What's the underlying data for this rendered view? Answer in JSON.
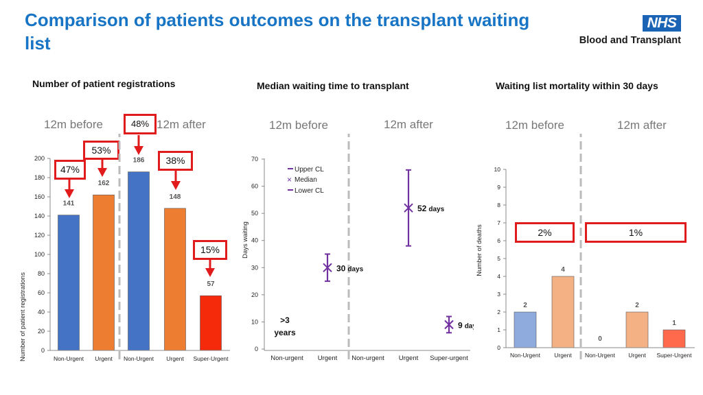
{
  "title": "Comparison of patients outcomes on the transplant waiting list",
  "logo": {
    "badge": "NHS",
    "organisation": "Blood and Transplant"
  },
  "sections": {
    "registrations": "Number of patient registrations",
    "waiting_time": "Median waiting time to transplant",
    "mortality": "Waiting list mortality within 30 days"
  },
  "period_labels": {
    "before": "12m before",
    "after": "12m after"
  },
  "change_labels": {
    "reg_nonurgent": "47%",
    "reg_urgent": "53%",
    "reg_nonurgent_after": "48%",
    "reg_urgent_after": "38%",
    "reg_superurgent": "15%",
    "mort_before": "2%",
    "mort_after": "1%"
  },
  "colors": {
    "title": "#1874c4",
    "blue_bar": "#4472c4",
    "orange_bar": "#ed7d31",
    "red_bar": "#f42a0a",
    "purple": "#7030a0",
    "light_blue_bar": "#8faadc",
    "light_orange_bar": "#f4b183",
    "light_red_bar": "#ff6a4d",
    "highlight": "#e11b1b"
  },
  "chart_data": [
    {
      "type": "bar",
      "title": "Number of patient registrations",
      "ylabel": "Number of patient registrations",
      "ylim": [
        0,
        200
      ],
      "yticks": [
        0,
        20,
        40,
        60,
        80,
        100,
        120,
        140,
        160,
        180,
        200
      ],
      "categories": [
        "Non-Urgent",
        "Urgent",
        "Non-Urgent",
        "Urgent",
        "Super-Urgent"
      ],
      "values": [
        141,
        162,
        186,
        148,
        57
      ],
      "value_labels": [
        "141",
        "162",
        "186",
        "148",
        "57"
      ],
      "bar_colors": [
        "#4472c4",
        "#ed7d31",
        "#4472c4",
        "#ed7d31",
        "#f42a0a"
      ],
      "groups": [
        "12m before",
        "12m before",
        "12m after",
        "12m after",
        "12m after"
      ]
    },
    {
      "type": "scatter",
      "title": "Median waiting time to transplant",
      "ylabel": "Days waiting",
      "ylim": [
        0,
        70
      ],
      "yticks": [
        0,
        10,
        20,
        30,
        40,
        50,
        60,
        70
      ],
      "categories": [
        "Non-urgent",
        "Urgent",
        "Non-urgent",
        "Urgent",
        "Super-urgent"
      ],
      "legend": [
        "Upper CL",
        "Median",
        "Lower CL"
      ],
      "points": [
        {
          "category_index": 0,
          "text_line1": ">3",
          "text_line2": "years"
        },
        {
          "category_index": 1,
          "median": 30,
          "upper": 35,
          "lower": 25,
          "label_value": "30",
          "label_unit": "days"
        },
        {
          "category_index": 3,
          "median": 52,
          "upper": 66,
          "lower": 38,
          "label_value": "52",
          "label_unit": "days"
        },
        {
          "category_index": 4,
          "median": 9,
          "upper": 12,
          "lower": 6,
          "label_value": "9",
          "label_unit": "days"
        }
      ]
    },
    {
      "type": "bar",
      "title": "Waiting list mortality within 30 days",
      "ylabel": "Number of deaths",
      "ylim": [
        0,
        10
      ],
      "yticks": [
        0,
        1,
        2,
        3,
        4,
        5,
        6,
        7,
        8,
        9,
        10
      ],
      "categories": [
        "Non-Urgent",
        "Urgent",
        "Non-Urgent",
        "Urgent",
        "Super-Urgent"
      ],
      "values": [
        2,
        4,
        0,
        2,
        1
      ],
      "value_labels": [
        "2",
        "4",
        "0",
        "2",
        "1"
      ],
      "bar_colors": [
        "#8faadc",
        "#f4b183",
        "#8faadc",
        "#f4b183",
        "#ff6a4d"
      ],
      "groups": [
        "12m before",
        "12m before",
        "12m after",
        "12m after",
        "12m after"
      ]
    }
  ]
}
